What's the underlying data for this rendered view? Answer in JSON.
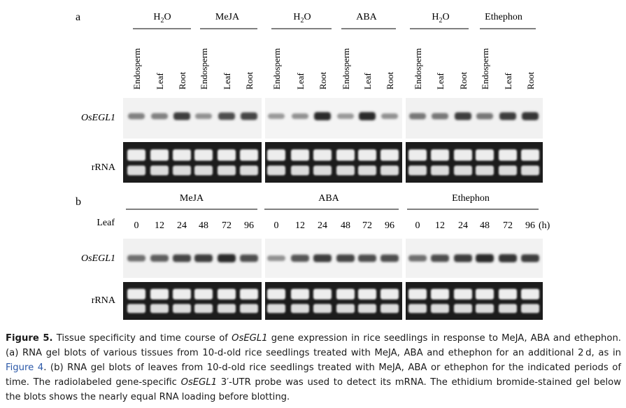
{
  "panel_a": {
    "label": "a",
    "gene_label": "OsEGL1",
    "rrna_label": "rRNA",
    "lane_labels": [
      "Endosperm",
      "Leaf",
      "Root"
    ],
    "groups": [
      {
        "treatment": "H",
        "sub": "2",
        "tail": "O",
        "blot": 1
      },
      {
        "treatment": "MeJA",
        "blot": 1
      },
      {
        "treatment": "H",
        "sub": "2",
        "tail": "O",
        "blot": 2
      },
      {
        "treatment": "ABA",
        "blot": 2
      },
      {
        "treatment": "H",
        "sub": "2",
        "tail": "O",
        "blot": 3
      },
      {
        "treatment": "Ethephon",
        "blot": 3
      }
    ],
    "band_intensity": [
      [
        0.45,
        0.45,
        0.85,
        0.35,
        0.75,
        0.8
      ],
      [
        0.3,
        0.35,
        0.95,
        0.3,
        0.95,
        0.35
      ],
      [
        0.5,
        0.5,
        0.85,
        0.5,
        0.85,
        0.9
      ]
    ]
  },
  "panel_b": {
    "label": "b",
    "row_label": "Leaf",
    "gene_label": "OsEGL1",
    "rrna_label": "rRNA",
    "treatments": [
      "MeJA",
      "ABA",
      "Ethephon"
    ],
    "timepoints": [
      "0",
      "12",
      "24",
      "48",
      "72",
      "96"
    ],
    "unit": "(h)",
    "band_intensity": [
      [
        0.55,
        0.65,
        0.8,
        0.85,
        0.95,
        0.75
      ],
      [
        0.35,
        0.7,
        0.85,
        0.8,
        0.75,
        0.75
      ],
      [
        0.55,
        0.75,
        0.85,
        0.95,
        0.9,
        0.85
      ]
    ]
  },
  "caption": {
    "label": "Figure 5.",
    "t1": " Tissue specificity and time course of ",
    "gene1": "OsEGL1",
    "t2": " gene expression in rice seedlings in response to MeJA, ABA and ethephon. (a) RNA gel blots of various tissues from 10-d-old rice seedlings treated with MeJA, ABA and ethephon for an additional 2 d, as in ",
    "fig_ref": "Figure 4",
    "t3": ". (b) RNA gel blots of leaves from 10-d-old rice seedlings treated with MeJA, ABA or ethephon for the indicated periods of time. The radiolabeled gene-specific ",
    "gene2": "OsEGL1",
    "t4": " 3′-UTR probe was used to detect its mRNA. The ethidium bromide-stained gel below the blots shows the nearly equal RNA loading before blotting."
  }
}
